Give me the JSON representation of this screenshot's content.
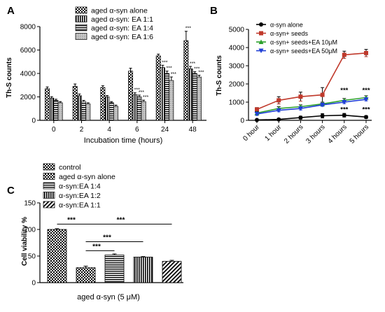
{
  "chart_data": [
    {
      "panel": "A",
      "type": "bar",
      "ylabel": "Th-S counts",
      "xlabel": "Incubation time (hours)",
      "categories": [
        "0",
        "2",
        "4",
        "6",
        "24",
        "48"
      ],
      "ylim": [
        0,
        8000
      ],
      "yticks": [
        "0",
        "2000",
        "4000",
        "6000",
        "8000"
      ],
      "series": [
        {
          "name": "aged α-syn alone",
          "values": [
            2700,
            2900,
            2800,
            4200,
            5500,
            6800
          ],
          "errors": [
            150,
            200,
            150,
            250,
            150,
            800
          ]
        },
        {
          "name": "aged α-syn: EA 1:1",
          "values": [
            1900,
            2100,
            2000,
            2200,
            4500,
            4400
          ],
          "errors": [
            120,
            150,
            120,
            150,
            200,
            200
          ]
        },
        {
          "name": "aged α-syn: EA 1:4",
          "values": [
            1700,
            1600,
            1500,
            2000,
            4000,
            4000
          ],
          "errors": [
            100,
            100,
            100,
            150,
            200,
            150
          ]
        },
        {
          "name": "aged α-syn: EA 1:6",
          "values": [
            1500,
            1400,
            1200,
            1600,
            3400,
            3700
          ],
          "errors": [
            100,
            100,
            100,
            120,
            300,
            150
          ]
        }
      ],
      "annotations": [
        {
          "category": "6",
          "series": 1,
          "text": "***"
        },
        {
          "category": "6",
          "series": 2,
          "text": "***"
        },
        {
          "category": "6",
          "series": 3,
          "text": "***"
        },
        {
          "category": "24",
          "series": 1,
          "text": "***"
        },
        {
          "category": "24",
          "series": 2,
          "text": "***"
        },
        {
          "category": "24",
          "series": 3,
          "text": "***"
        },
        {
          "category": "48",
          "series": 0,
          "text": "***"
        },
        {
          "category": "48",
          "series": 1,
          "text": "***"
        },
        {
          "category": "48",
          "series": 2,
          "text": "***"
        },
        {
          "category": "48",
          "series": 3,
          "text": "***"
        }
      ],
      "legend_position": "top-left"
    },
    {
      "panel": "B",
      "type": "line",
      "ylabel": "Th-S counts",
      "xlabel": "",
      "categories": [
        "0 hour",
        "1 hour",
        "2 hours",
        "3 hours",
        "4 hours",
        "5 hours"
      ],
      "ylim": [
        0,
        5000
      ],
      "yticks": [
        "0",
        "1000",
        "2000",
        "3000",
        "4000",
        "5000"
      ],
      "series": [
        {
          "name": "α-syn alone",
          "color": "#000000",
          "marker": "circle",
          "values": [
            20,
            50,
            150,
            250,
            280,
            180
          ],
          "errors": [
            20,
            50,
            80,
            120,
            100,
            80
          ]
        },
        {
          "name": "α-syn+ seeds",
          "color": "#c0392b",
          "marker": "square",
          "values": [
            600,
            1100,
            1300,
            1400,
            3600,
            3700
          ],
          "errors": [
            100,
            200,
            250,
            400,
            200,
            200
          ]
        },
        {
          "name": "α-syn+ seeds+EA 10μM",
          "color": "#2ca02c",
          "marker": "triangle-up",
          "values": [
            400,
            650,
            750,
            900,
            1100,
            1250
          ],
          "errors": [
            80,
            100,
            100,
            100,
            100,
            100
          ]
        },
        {
          "name": "α-syn+ seeds+EA 50μM",
          "color": "#1f3fd6",
          "marker": "triangle-down",
          "values": [
            350,
            550,
            650,
            850,
            1000,
            1150
          ],
          "errors": [
            80,
            80,
            80,
            80,
            80,
            80
          ]
        }
      ],
      "annotations": [
        {
          "category": "4 hours",
          "text": "***",
          "value": 1650
        },
        {
          "category": "5 hours",
          "text": "***",
          "value": 1650
        },
        {
          "category": "4 hours",
          "text": "***",
          "value": 600
        },
        {
          "category": "5 hours",
          "text": "***",
          "value": 600
        }
      ],
      "legend_position": "top-left"
    },
    {
      "panel": "C",
      "type": "bar",
      "ylabel": "Cell viability %",
      "xlabel": "aged α-syn (5 μM)",
      "categories": [
        "control",
        "aged α-syn alone",
        "α-syn:EA  1:4",
        "α-syn:EA  1:2",
        "α-syn:EA  1:1"
      ],
      "ylim": [
        0,
        150
      ],
      "yticks": [
        "0",
        "50",
        "100",
        "150"
      ],
      "values": [
        100,
        28,
        52,
        48,
        40
      ],
      "errors": [
        1.5,
        3,
        2,
        1,
        2
      ],
      "comparisons": [
        {
          "from": 0,
          "to": 1,
          "text": "***",
          "value": 110
        },
        {
          "from": 1,
          "to": 4,
          "text": "***",
          "value": 110
        },
        {
          "from": 1,
          "to": 3,
          "text": "***",
          "value": 77
        },
        {
          "from": 1,
          "to": 2,
          "text": "***",
          "value": 60
        }
      ],
      "legend_position": "top-left"
    }
  ],
  "panel_labels": [
    "A",
    "B",
    "C"
  ]
}
